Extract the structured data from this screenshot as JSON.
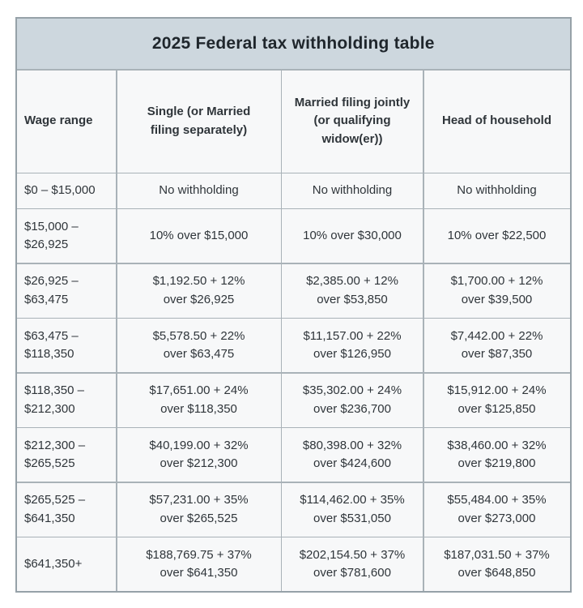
{
  "title": "2025 Federal tax withholding table",
  "colors": {
    "title_band_bg": "#cdd7de",
    "cell_bg": "#f7f8f9",
    "grid_line": "#a9b2b8",
    "outer_border": "#96a1a8",
    "text": "#2f353a",
    "page_bg": "#ffffff"
  },
  "table": {
    "columns": [
      "Wage range",
      "Single (or Married\nfiling separately)",
      "Married filing jointly\n(or qualifying\nwidow(er))",
      "Head of household"
    ],
    "rows": [
      {
        "wage": "$0 – $15,000",
        "single": "No withholding",
        "married_jointly": "No withholding",
        "head_household": "No withholding"
      },
      {
        "wage": "$15,000 –\n$26,925",
        "single": "10% over $15,000",
        "married_jointly": "10% over $30,000",
        "head_household": "10% over $22,500"
      },
      {
        "wage": "$26,925 –\n$63,475",
        "single": "$1,192.50 + 12%\nover $26,925",
        "married_jointly": "$2,385.00 + 12%\nover $53,850",
        "head_household": "$1,700.00 + 12%\nover $39,500"
      },
      {
        "wage": "$63,475 –\n$118,350",
        "single": "$5,578.50 + 22%\nover $63,475",
        "married_jointly": "$11,157.00 + 22%\nover $126,950",
        "head_household": "$7,442.00 + 22%\nover $87,350"
      },
      {
        "wage": "$118,350 –\n$212,300",
        "single": "$17,651.00 + 24%\nover $118,350",
        "married_jointly": "$35,302.00 + 24%\nover $236,700",
        "head_household": "$15,912.00 + 24%\nover $125,850"
      },
      {
        "wage": "$212,300 –\n$265,525",
        "single": "$40,199.00 + 32%\nover $212,300",
        "married_jointly": "$80,398.00 + 32%\nover $424,600",
        "head_household": "$38,460.00 + 32%\nover $219,800"
      },
      {
        "wage": "$265,525 –\n$641,350",
        "single": "$57,231.00 + 35%\nover $265,525",
        "married_jointly": "$114,462.00 + 35%\nover $531,050",
        "head_household": "$55,484.00 + 35%\nover $273,000"
      },
      {
        "wage": "$641,350+",
        "single": "$188,769.75 + 37%\nover $641,350",
        "married_jointly": "$202,154.50 + 37%\nover $781,600",
        "head_household": "$187,031.50 + 37%\nover $648,850"
      }
    ]
  }
}
